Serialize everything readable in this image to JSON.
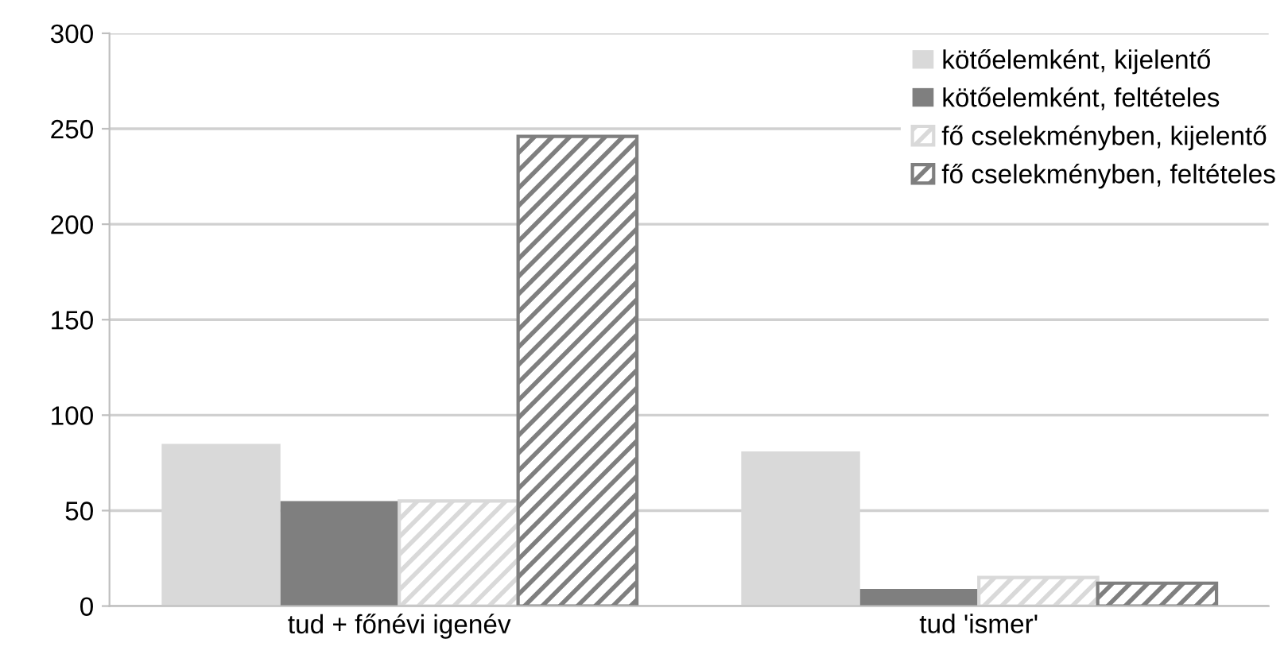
{
  "chart_data": {
    "type": "bar",
    "categories": [
      "tud + főnévi igenév",
      "tud 'ismer'"
    ],
    "series": [
      {
        "name": "kötőelemként, kijelentő",
        "color": "#d9d9d9",
        "values": [
          85,
          81
        ]
      },
      {
        "name": "kötőelemként, feltételes",
        "color": "#7f7f7f",
        "values": [
          55,
          9
        ]
      },
      {
        "name": "fő cselekményben, kijelentő",
        "color": "#d9d9d9",
        "values": [
          55,
          15
        ]
      },
      {
        "name": "fő cselekményben, feltételes",
        "color": "#7f7f7f",
        "values": [
          246,
          12
        ]
      }
    ],
    "ylim": [
      0,
      300
    ],
    "yticks": [
      0,
      50,
      100,
      150,
      200,
      250,
      300
    ],
    "grid": "y",
    "legend": "top right"
  }
}
